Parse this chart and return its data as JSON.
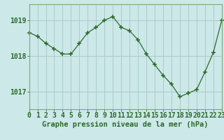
{
  "hours": [
    0,
    1,
    2,
    3,
    4,
    5,
    6,
    7,
    8,
    9,
    10,
    11,
    12,
    13,
    14,
    15,
    16,
    17,
    18,
    19,
    20,
    21,
    22,
    23
  ],
  "pressure": [
    1018.65,
    1018.55,
    1018.35,
    1018.2,
    1018.05,
    1018.05,
    1018.35,
    1018.65,
    1018.8,
    1019.0,
    1019.1,
    1018.8,
    1018.7,
    1018.45,
    1018.05,
    1017.75,
    1017.45,
    1017.2,
    1016.85,
    1016.95,
    1017.05,
    1017.55,
    1018.1,
    1019.0
  ],
  "line_color": "#2d6a2d",
  "marker": "+",
  "background_color": "#cce8e8",
  "grid_color": "#aacccc",
  "ylabel_ticks": [
    1017,
    1018,
    1019
  ],
  "xlabel": "Graphe pression niveau de la mer (hPa)",
  "ylim": [
    1016.5,
    1019.45
  ],
  "xlim": [
    0,
    23
  ],
  "tick_color": "#2d6a2d",
  "label_color": "#2d6a2d",
  "spine_color": "#7aaa7a",
  "fontsize_xlabel": 7.5,
  "fontsize_ticks": 7.0
}
